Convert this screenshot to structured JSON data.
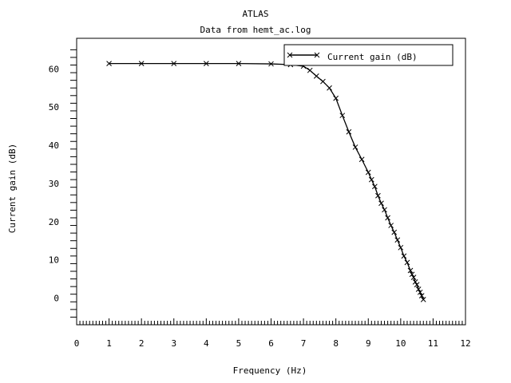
{
  "chart_data": {
    "type": "line",
    "title": "ATLAS",
    "subtitle": "Data from hemt_ac.log",
    "xlabel": "Frequency (Hz)",
    "ylabel": "Current gain (dB)",
    "xlim": [
      0,
      12
    ],
    "ylim": [
      -7,
      68
    ],
    "x_ticks": [
      "0",
      "1",
      "2",
      "3",
      "4",
      "5",
      "6",
      "7",
      "8",
      "9",
      "10",
      "11",
      "12"
    ],
    "y_ticks": [
      "0",
      "10",
      "20",
      "30",
      "40",
      "50",
      "60"
    ],
    "grid": false,
    "legend_position": "top-right",
    "series": [
      {
        "name": "Current gain (dB)",
        "marker": "x",
        "color": "#000000",
        "x": [
          1.0,
          2.0,
          3.0,
          4.0,
          5.0,
          6.0,
          6.6,
          7.0,
          7.2,
          7.4,
          7.6,
          7.8,
          8.0,
          8.2,
          8.4,
          8.6,
          8.8,
          9.0,
          9.1,
          9.2,
          9.3,
          9.4,
          9.5,
          9.6,
          9.7,
          9.8,
          9.9,
          10.0,
          10.1,
          10.2,
          10.3,
          10.35,
          10.4,
          10.45,
          10.5,
          10.55,
          10.6,
          10.65,
          10.7
        ],
        "y": [
          61.4,
          61.4,
          61.4,
          61.4,
          61.4,
          61.3,
          61.1,
          60.7,
          59.6,
          58.1,
          56.7,
          55.0,
          52.3,
          47.8,
          43.5,
          39.5,
          36.3,
          32.9,
          31.0,
          29.2,
          26.8,
          24.8,
          23.1,
          21.0,
          19.0,
          17.2,
          15.2,
          13.2,
          11.0,
          9.3,
          7.2,
          6.2,
          5.4,
          4.2,
          3.5,
          2.3,
          1.5,
          0.6,
          -0.4
        ]
      }
    ]
  }
}
